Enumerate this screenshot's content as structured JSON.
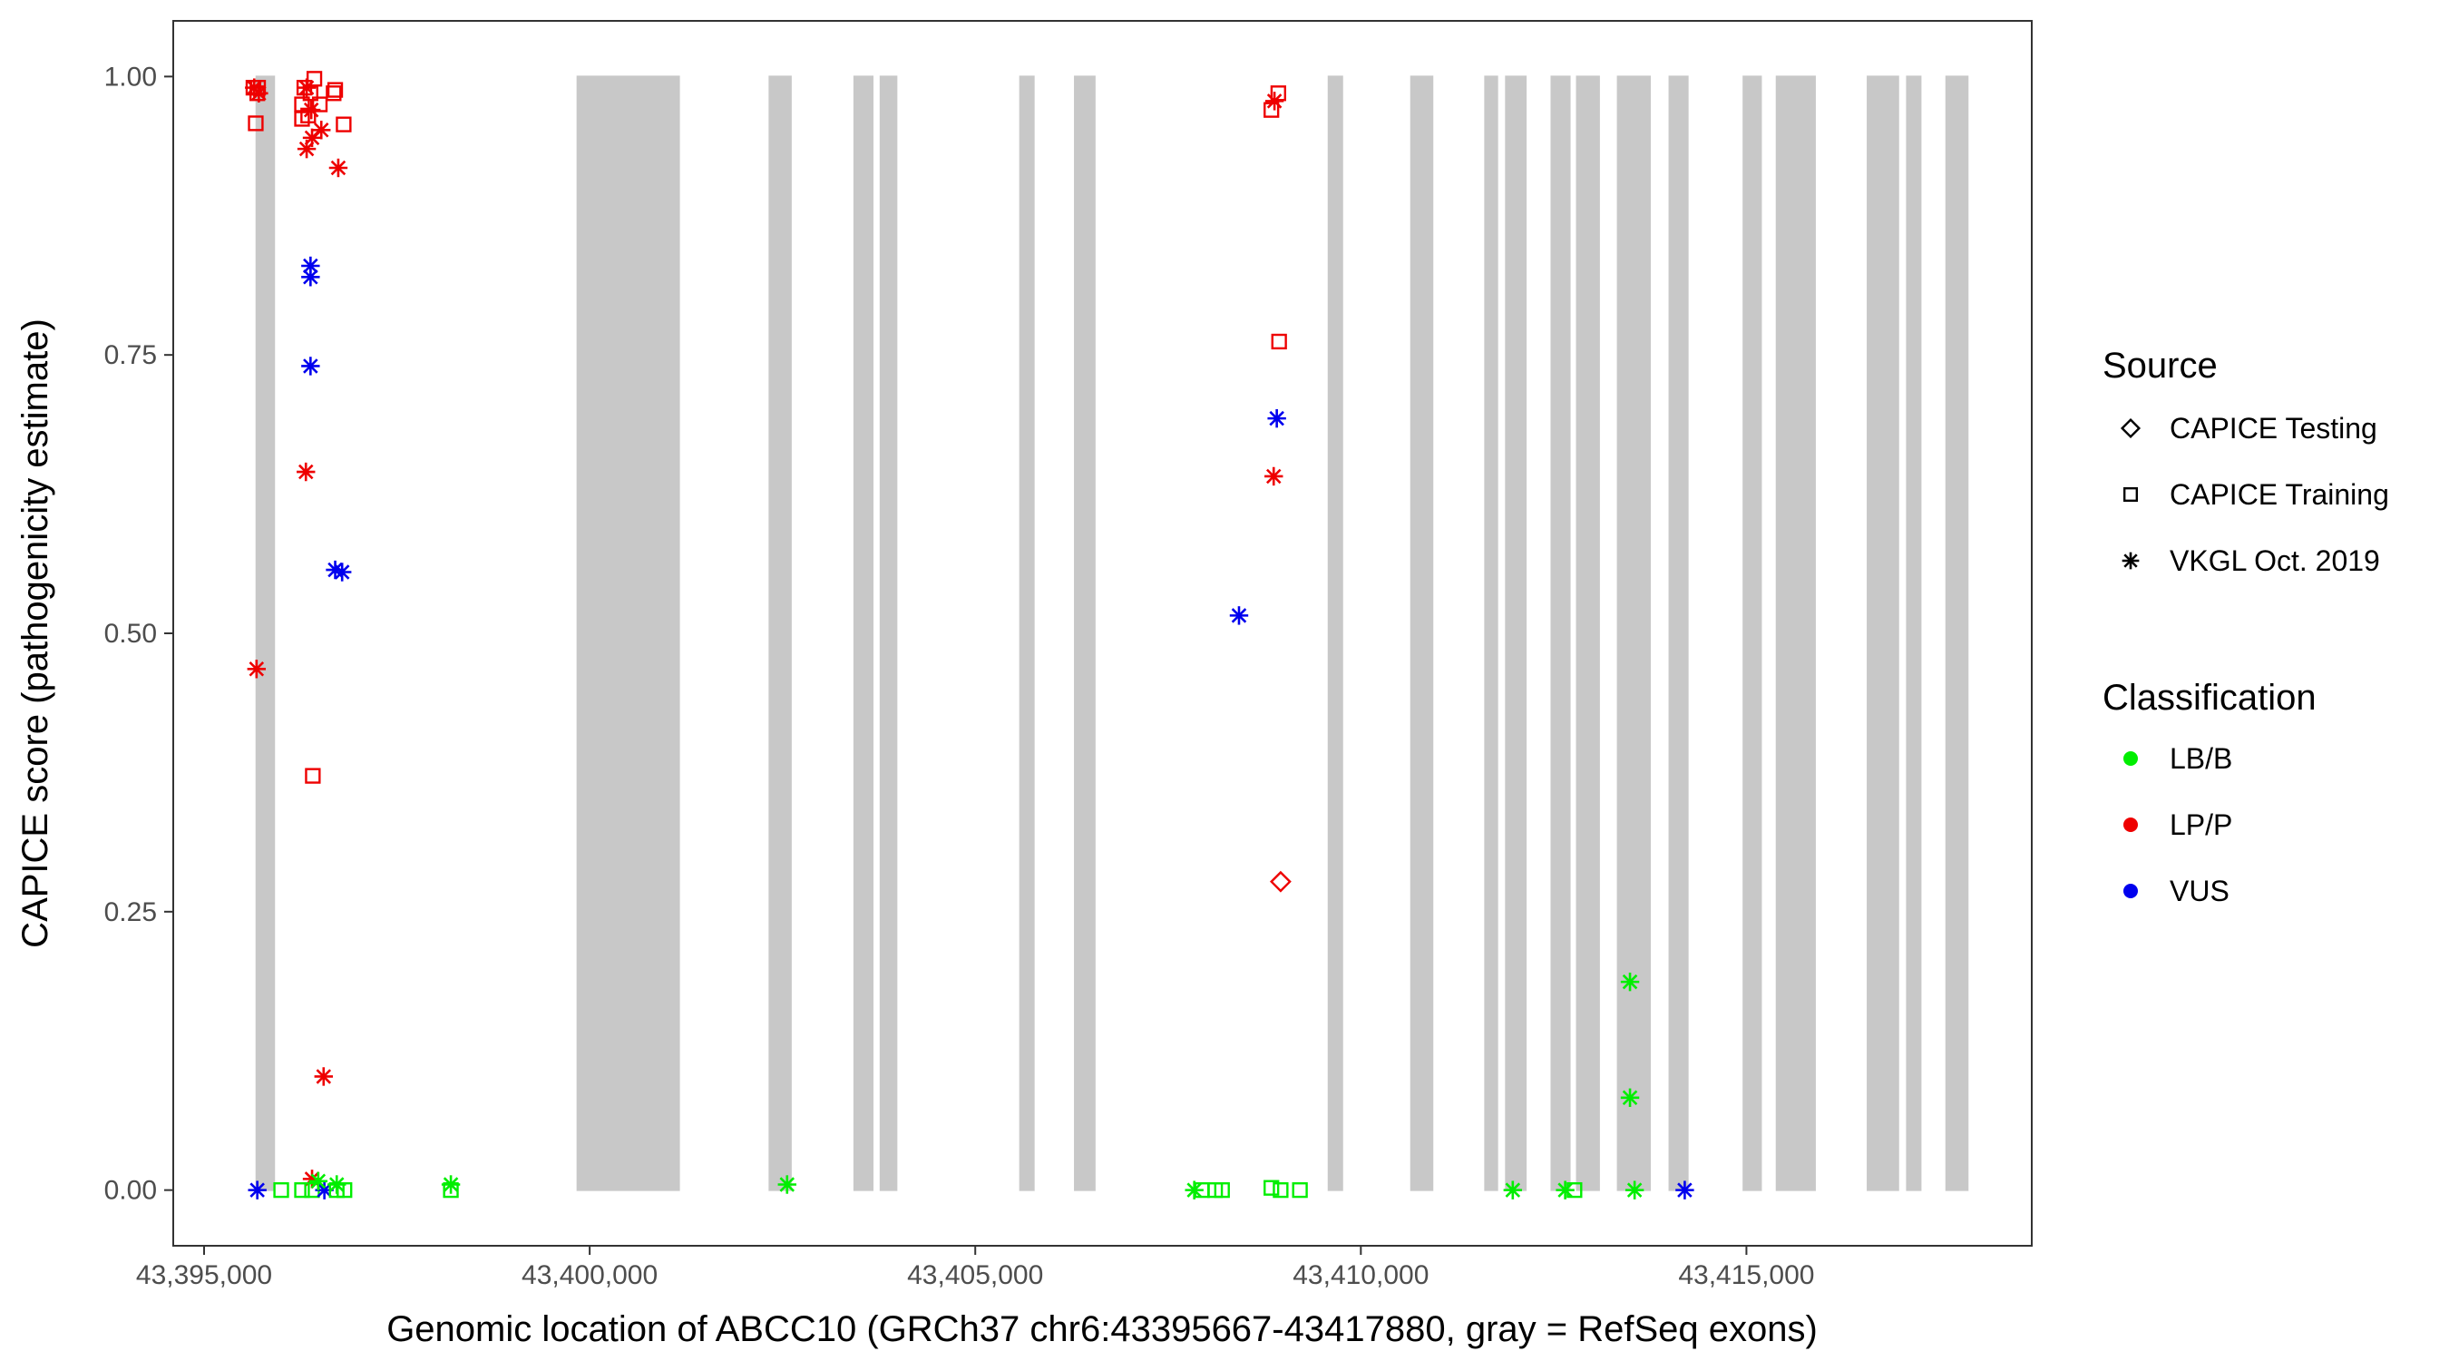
{
  "chart_data": {
    "type": "scatter",
    "xlabel": "Genomic location of ABCC10 (GRCh37 chr6:43395667-43417880, gray = RefSeq exons)",
    "ylabel": "CAPICE score (pathogenicity estimate)",
    "xlim": [
      43394600,
      43418700
    ],
    "ylim": [
      -0.05,
      1.05
    ],
    "x_ticks": [
      43395000,
      43400000,
      43405000,
      43410000,
      43415000
    ],
    "x_tick_labels": [
      "43,395,000",
      "43,400,000",
      "43,405,000",
      "43,410,000",
      "43,415,000"
    ],
    "y_ticks": [
      0,
      0.25,
      0.5,
      0.75,
      1
    ],
    "y_tick_labels": [
      "0.00",
      "0.25",
      "0.50",
      "0.75",
      "1.00"
    ],
    "grid": false,
    "legend_position": "right",
    "exon_color": "#c8c8c8",
    "exons": [
      [
        43395667,
        43395920
      ],
      [
        43399830,
        43401170
      ],
      [
        43402320,
        43402620
      ],
      [
        43403420,
        43403680
      ],
      [
        43403760,
        43403990
      ],
      [
        43405570,
        43405770
      ],
      [
        43406280,
        43406560
      ],
      [
        43409570,
        43409770
      ],
      [
        43410640,
        43410940
      ],
      [
        43411600,
        43411780
      ],
      [
        43411870,
        43412150
      ],
      [
        43412460,
        43412720
      ],
      [
        43412790,
        43413100
      ],
      [
        43413320,
        43413760
      ],
      [
        43413990,
        43414250
      ],
      [
        43414950,
        43415200
      ],
      [
        43415380,
        43415900
      ],
      [
        43416560,
        43416980
      ],
      [
        43417070,
        43417270
      ],
      [
        43417580,
        43417880
      ]
    ],
    "legend_source": {
      "title": "Source",
      "items": [
        {
          "label": "CAPICE Testing",
          "shape": "diamond"
        },
        {
          "label": "CAPICE Training",
          "shape": "square"
        },
        {
          "label": "VKGL Oct. 2019",
          "shape": "asterisk"
        }
      ]
    },
    "legend_classification": {
      "title": "Classification",
      "items": [
        {
          "label": "LB/B",
          "color": "#00ee00"
        },
        {
          "label": "LP/P",
          "color": "#ee0000"
        },
        {
          "label": "VUS",
          "color": "#0000ee"
        }
      ]
    },
    "points": [
      {
        "x": 43395640,
        "y": 0.99,
        "shape": "square",
        "class": "LP/P"
      },
      {
        "x": 43395700,
        "y": 0.99,
        "shape": "square",
        "class": "LP/P"
      },
      {
        "x": 43395690,
        "y": 0.985,
        "shape": "square",
        "class": "LP/P"
      },
      {
        "x": 43395670,
        "y": 0.958,
        "shape": "square",
        "class": "LP/P"
      },
      {
        "x": 43395650,
        "y": 0.99,
        "shape": "asterisk",
        "class": "LP/P"
      },
      {
        "x": 43395710,
        "y": 0.985,
        "shape": "asterisk",
        "class": "LP/P"
      },
      {
        "x": 43396430,
        "y": 0.998,
        "shape": "square",
        "class": "LP/P"
      },
      {
        "x": 43396300,
        "y": 0.99,
        "shape": "square",
        "class": "LP/P"
      },
      {
        "x": 43396380,
        "y": 0.985,
        "shape": "square",
        "class": "LP/P"
      },
      {
        "x": 43396270,
        "y": 0.975,
        "shape": "square",
        "class": "LP/P"
      },
      {
        "x": 43396350,
        "y": 0.965,
        "shape": "square",
        "class": "LP/P"
      },
      {
        "x": 43396270,
        "y": 0.962,
        "shape": "square",
        "class": "LP/P"
      },
      {
        "x": 43396500,
        "y": 0.975,
        "shape": "square",
        "class": "LP/P"
      },
      {
        "x": 43396700,
        "y": 0.988,
        "shape": "square",
        "class": "LP/P"
      },
      {
        "x": 43396680,
        "y": 0.985,
        "shape": "square",
        "class": "LP/P"
      },
      {
        "x": 43396810,
        "y": 0.957,
        "shape": "square",
        "class": "LP/P"
      },
      {
        "x": 43396330,
        "y": 0.99,
        "shape": "asterisk",
        "class": "LP/P"
      },
      {
        "x": 43396390,
        "y": 0.97,
        "shape": "asterisk",
        "class": "LP/P"
      },
      {
        "x": 43396520,
        "y": 0.952,
        "shape": "asterisk",
        "class": "LP/P"
      },
      {
        "x": 43396330,
        "y": 0.935,
        "shape": "asterisk",
        "class": "LP/P"
      },
      {
        "x": 43396400,
        "y": 0.945,
        "shape": "asterisk",
        "class": "LP/P"
      },
      {
        "x": 43396740,
        "y": 0.918,
        "shape": "asterisk",
        "class": "LP/P"
      },
      {
        "x": 43396380,
        "y": 0.83,
        "shape": "asterisk",
        "class": "VUS"
      },
      {
        "x": 43396380,
        "y": 0.82,
        "shape": "asterisk",
        "class": "VUS"
      },
      {
        "x": 43396380,
        "y": 0.74,
        "shape": "asterisk",
        "class": "VUS"
      },
      {
        "x": 43396320,
        "y": 0.645,
        "shape": "asterisk",
        "class": "LP/P"
      },
      {
        "x": 43396700,
        "y": 0.557,
        "shape": "asterisk",
        "class": "VUS"
      },
      {
        "x": 43396790,
        "y": 0.555,
        "shape": "asterisk",
        "class": "VUS"
      },
      {
        "x": 43395680,
        "y": 0.468,
        "shape": "asterisk",
        "class": "LP/P"
      },
      {
        "x": 43396410,
        "y": 0.372,
        "shape": "square",
        "class": "LP/P"
      },
      {
        "x": 43396550,
        "y": 0.102,
        "shape": "asterisk",
        "class": "LP/P"
      },
      {
        "x": 43396400,
        "y": 0.01,
        "shape": "asterisk",
        "class": "LP/P"
      },
      {
        "x": 43395690,
        "y": 0.0,
        "shape": "asterisk",
        "class": "VUS"
      },
      {
        "x": 43396000,
        "y": 0.0,
        "shape": "square",
        "class": "LB/B"
      },
      {
        "x": 43396270,
        "y": 0.0,
        "shape": "square",
        "class": "LB/B"
      },
      {
        "x": 43396400,
        "y": 0.0,
        "shape": "square",
        "class": "LB/B"
      },
      {
        "x": 43396560,
        "y": 0.0,
        "shape": "asterisk",
        "class": "VUS"
      },
      {
        "x": 43396480,
        "y": 0.008,
        "shape": "asterisk",
        "class": "LB/B"
      },
      {
        "x": 43396720,
        "y": 0.005,
        "shape": "asterisk",
        "class": "LB/B"
      },
      {
        "x": 43396720,
        "y": 0.0,
        "shape": "square",
        "class": "LB/B"
      },
      {
        "x": 43396820,
        "y": 0.0,
        "shape": "square",
        "class": "LB/B"
      },
      {
        "x": 43398200,
        "y": 0.005,
        "shape": "asterisk",
        "class": "LB/B"
      },
      {
        "x": 43398200,
        "y": 0.0,
        "shape": "square",
        "class": "LB/B"
      },
      {
        "x": 43402560,
        "y": 0.005,
        "shape": "asterisk",
        "class": "LB/B"
      },
      {
        "x": 43407840,
        "y": 0.0,
        "shape": "asterisk",
        "class": "LB/B"
      },
      {
        "x": 43407940,
        "y": 0.0,
        "shape": "square",
        "class": "LB/B"
      },
      {
        "x": 43408110,
        "y": 0.0,
        "shape": "square",
        "class": "LB/B"
      },
      {
        "x": 43408200,
        "y": 0.0,
        "shape": "square",
        "class": "LB/B"
      },
      {
        "x": 43408840,
        "y": 0.002,
        "shape": "square",
        "class": "LB/B"
      },
      {
        "x": 43408960,
        "y": 0.0,
        "shape": "square",
        "class": "LB/B"
      },
      {
        "x": 43409210,
        "y": 0.0,
        "shape": "square",
        "class": "LB/B"
      },
      {
        "x": 43408840,
        "y": 0.97,
        "shape": "square",
        "class": "LP/P"
      },
      {
        "x": 43408930,
        "y": 0.985,
        "shape": "square",
        "class": "LP/P"
      },
      {
        "x": 43408880,
        "y": 0.978,
        "shape": "asterisk",
        "class": "LP/P"
      },
      {
        "x": 43408940,
        "y": 0.762,
        "shape": "square",
        "class": "LP/P"
      },
      {
        "x": 43408910,
        "y": 0.693,
        "shape": "asterisk",
        "class": "VUS"
      },
      {
        "x": 43408870,
        "y": 0.641,
        "shape": "asterisk",
        "class": "LP/P"
      },
      {
        "x": 43408420,
        "y": 0.516,
        "shape": "asterisk",
        "class": "VUS"
      },
      {
        "x": 43408960,
        "y": 0.277,
        "shape": "diamond",
        "class": "LP/P"
      },
      {
        "x": 43411970,
        "y": 0.0,
        "shape": "asterisk",
        "class": "LB/B"
      },
      {
        "x": 43412650,
        "y": 0.0,
        "shape": "asterisk",
        "class": "LB/B"
      },
      {
        "x": 43412770,
        "y": 0.0,
        "shape": "square",
        "class": "LB/B"
      },
      {
        "x": 43413490,
        "y": 0.187,
        "shape": "asterisk",
        "class": "LB/B"
      },
      {
        "x": 43413490,
        "y": 0.083,
        "shape": "asterisk",
        "class": "LB/B"
      },
      {
        "x": 43413550,
        "y": 0.0,
        "shape": "asterisk",
        "class": "LB/B"
      },
      {
        "x": 43414200,
        "y": 0.0,
        "shape": "asterisk",
        "class": "VUS"
      }
    ]
  }
}
